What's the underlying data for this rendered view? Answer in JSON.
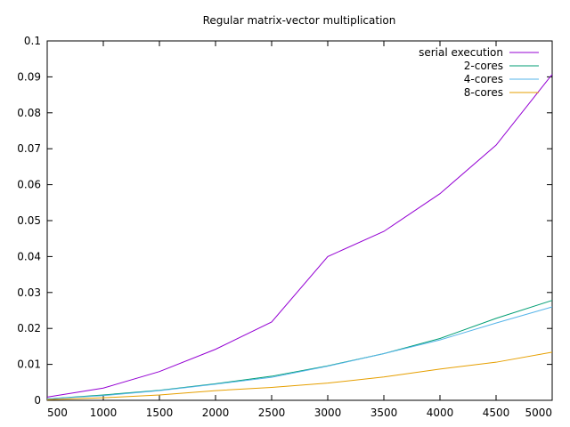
{
  "chart_data": {
    "type": "line",
    "title": "Regular matrix-vector multiplication",
    "xlabel": "",
    "ylabel": "",
    "xlim": [
      500,
      5000
    ],
    "ylim": [
      0,
      0.1
    ],
    "x_ticks": [
      500,
      1000,
      1500,
      2000,
      2500,
      3000,
      3500,
      4000,
      4500,
      5000
    ],
    "x_tick_labels": [
      "500",
      "1000",
      "1500",
      "2000",
      "2500",
      "3000",
      "3500",
      "4000",
      "4500",
      "5000"
    ],
    "y_ticks": [
      0,
      0.01,
      0.02,
      0.03,
      0.04,
      0.05,
      0.06,
      0.07,
      0.08,
      0.09,
      0.1
    ],
    "y_tick_labels": [
      "0",
      "0.01",
      "0.02",
      "0.03",
      "0.04",
      "0.05",
      "0.06",
      "0.07",
      "0.08",
      "0.09",
      "0.1"
    ],
    "grid": false,
    "legend_position": "top-right",
    "x": [
      500,
      1000,
      1500,
      2000,
      2500,
      3000,
      3500,
      4000,
      4500,
      5000
    ],
    "series": [
      {
        "name": "serial execution",
        "color": "#9400d3",
        "values": [
          0.0009,
          0.0034,
          0.008,
          0.0142,
          0.0218,
          0.04,
          0.047,
          0.0575,
          0.071,
          0.0907
        ]
      },
      {
        "name": "2-cores",
        "color": "#009e73",
        "values": [
          0.0004,
          0.0015,
          0.0028,
          0.0046,
          0.0067,
          0.0096,
          0.013,
          0.0172,
          0.0228,
          0.0278
        ]
      },
      {
        "name": "4-cores",
        "color": "#56b4e9",
        "values": [
          0.0004,
          0.0013,
          0.0027,
          0.0045,
          0.0064,
          0.0095,
          0.013,
          0.0168,
          0.0215,
          0.026
        ]
      },
      {
        "name": "8-cores",
        "color": "#e69f00",
        "values": [
          0.0002,
          0.0007,
          0.0015,
          0.0027,
          0.0036,
          0.0048,
          0.0065,
          0.0087,
          0.0106,
          0.0134
        ]
      }
    ]
  }
}
